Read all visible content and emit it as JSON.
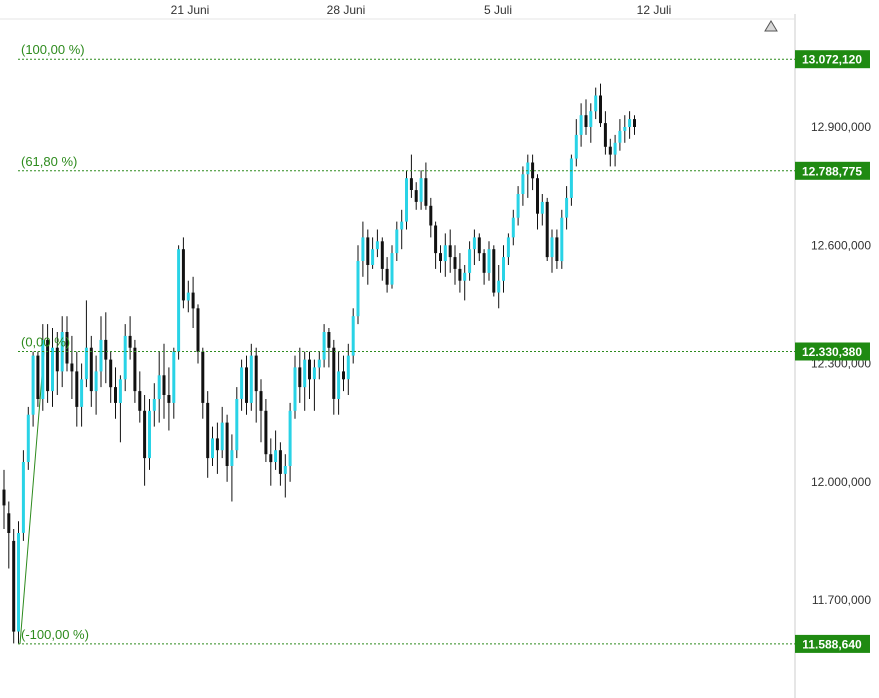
{
  "chart_data": {
    "type": "candlestick",
    "x_tick_labels": [
      "21 Juni",
      "28 Juni",
      "5 Juli",
      "12 Juli"
    ],
    "y_tick_labels": [
      "12.900,000",
      "12.600,000",
      "12.300,000",
      "12.000,000",
      "11.700,000"
    ],
    "y_ticks": [
      12900,
      12600,
      12300,
      12000,
      11700
    ],
    "ylim": [
      11450,
      13180
    ],
    "colors": {
      "up": "#29d3e6",
      "down": "#111111",
      "fib": "#2e8b1e",
      "badge_bg": "#1f8a12",
      "axis": "#cccccc"
    },
    "fibonacci_levels": [
      {
        "label": "(100,00 %)",
        "value": 13072.12,
        "badge": "13.072,120"
      },
      {
        "label": "(61,80 %)",
        "value": 12788.775,
        "badge": "12.788,775"
      },
      {
        "label": "(0,00 %)",
        "value": 12330.38,
        "badge": "12.330,380"
      },
      {
        "label": "(-100,00 %)",
        "value": 11588.64,
        "badge": "11.588,640"
      }
    ],
    "up_icon": "up-arrow-icon",
    "candles": [
      [
        11980,
        12030,
        11880,
        11940
      ],
      [
        11920,
        11950,
        11780,
        11870
      ],
      [
        11850,
        11880,
        11590,
        11620
      ],
      [
        11620,
        11900,
        11590,
        11870
      ],
      [
        11870,
        12080,
        11850,
        12050
      ],
      [
        12050,
        12190,
        12030,
        12170
      ],
      [
        12170,
        12330,
        12140,
        12320
      ],
      [
        12320,
        12330,
        12190,
        12210
      ],
      [
        12210,
        12400,
        12180,
        12360
      ],
      [
        12360,
        12400,
        12200,
        12230
      ],
      [
        12230,
        12390,
        12190,
        12340
      ],
      [
        12340,
        12380,
        12220,
        12280
      ],
      [
        12280,
        12420,
        12240,
        12380
      ],
      [
        12380,
        12420,
        12280,
        12300
      ],
      [
        12300,
        12370,
        12210,
        12280
      ],
      [
        12280,
        12330,
        12140,
        12190
      ],
      [
        12190,
        12300,
        12140,
        12260
      ],
      [
        12260,
        12460,
        12240,
        12340
      ],
      [
        12340,
        12370,
        12190,
        12230
      ],
      [
        12230,
        12320,
        12170,
        12280
      ],
      [
        12280,
        12420,
        12240,
        12360
      ],
      [
        12360,
        12430,
        12250,
        12310
      ],
      [
        12310,
        12330,
        12200,
        12240
      ],
      [
        12240,
        12290,
        12160,
        12200
      ],
      [
        12200,
        12270,
        12100,
        12260
      ],
      [
        12260,
        12400,
        12230,
        12370
      ],
      [
        12370,
        12420,
        12310,
        12340
      ],
      [
        12340,
        12360,
        12200,
        12230
      ],
      [
        12230,
        12280,
        12150,
        12180
      ],
      [
        12180,
        12220,
        11990,
        12060
      ],
      [
        12060,
        12210,
        12030,
        12180
      ],
      [
        12180,
        12250,
        12140,
        12210
      ],
      [
        12210,
        12330,
        12150,
        12270
      ],
      [
        12270,
        12350,
        12160,
        12220
      ],
      [
        12220,
        12290,
        12130,
        12200
      ],
      [
        12200,
        12340,
        12160,
        12330
      ],
      [
        12330,
        12600,
        12310,
        12590
      ],
      [
        12590,
        12620,
        12440,
        12460
      ],
      [
        12460,
        12510,
        12430,
        12480
      ],
      [
        12480,
        12520,
        12390,
        12440
      ],
      [
        12440,
        12450,
        12300,
        12330
      ],
      [
        12330,
        12340,
        12160,
        12200
      ],
      [
        12200,
        12230,
        12010,
        12060
      ],
      [
        12060,
        12140,
        12040,
        12110
      ],
      [
        12110,
        12150,
        12020,
        12080
      ],
      [
        12080,
        12190,
        12060,
        12150
      ],
      [
        12150,
        12170,
        12000,
        12040
      ],
      [
        12040,
        12120,
        11950,
        12080
      ],
      [
        12080,
        12240,
        12060,
        12210
      ],
      [
        12210,
        12310,
        12180,
        12290
      ],
      [
        12290,
        12320,
        12170,
        12200
      ],
      [
        12200,
        12350,
        12180,
        12320
      ],
      [
        12320,
        12340,
        12150,
        12230
      ],
      [
        12230,
        12260,
        12100,
        12180
      ],
      [
        12180,
        12210,
        12050,
        12070
      ],
      [
        12070,
        12110,
        11990,
        12050
      ],
      [
        12050,
        12130,
        12030,
        12080
      ],
      [
        12080,
        12100,
        11990,
        12020
      ],
      [
        12020,
        12070,
        11960,
        12040
      ],
      [
        12040,
        12200,
        12000,
        12180
      ],
      [
        12180,
        12320,
        12160,
        12290
      ],
      [
        12290,
        12340,
        12200,
        12240
      ],
      [
        12240,
        12330,
        12180,
        12310
      ],
      [
        12310,
        12330,
        12210,
        12260
      ],
      [
        12260,
        12310,
        12180,
        12290
      ],
      [
        12290,
        12330,
        12260,
        12310
      ],
      [
        12310,
        12400,
        12290,
        12380
      ],
      [
        12380,
        12390,
        12290,
        12340
      ],
      [
        12340,
        12360,
        12170,
        12210
      ],
      [
        12210,
        12330,
        12170,
        12280
      ],
      [
        12280,
        12320,
        12230,
        12260
      ],
      [
        12260,
        12350,
        12220,
        12320
      ],
      [
        12320,
        12440,
        12300,
        12420
      ],
      [
        12420,
        12600,
        12400,
        12560
      ],
      [
        12560,
        12660,
        12520,
        12620
      ],
      [
        12620,
        12640,
        12500,
        12550
      ],
      [
        12550,
        12620,
        12540,
        12590
      ],
      [
        12590,
        12640,
        12570,
        12610
      ],
      [
        12610,
        12620,
        12510,
        12540
      ],
      [
        12540,
        12570,
        12480,
        12500
      ],
      [
        12500,
        12600,
        12490,
        12580
      ],
      [
        12580,
        12660,
        12560,
        12640
      ],
      [
        12640,
        12690,
        12590,
        12660
      ],
      [
        12660,
        12790,
        12640,
        12770
      ],
      [
        12770,
        12830,
        12720,
        12740
      ],
      [
        12740,
        12760,
        12690,
        12710
      ],
      [
        12710,
        12790,
        12690,
        12770
      ],
      [
        12770,
        12810,
        12690,
        12700
      ],
      [
        12700,
        12720,
        12620,
        12650
      ],
      [
        12650,
        12660,
        12540,
        12580
      ],
      [
        12580,
        12600,
        12530,
        12560
      ],
      [
        12560,
        12630,
        12520,
        12600
      ],
      [
        12600,
        12640,
        12530,
        12570
      ],
      [
        12570,
        12600,
        12500,
        12540
      ],
      [
        12540,
        12580,
        12480,
        12510
      ],
      [
        12510,
        12550,
        12460,
        12530
      ],
      [
        12530,
        12610,
        12510,
        12590
      ],
      [
        12590,
        12640,
        12550,
        12620
      ],
      [
        12620,
        12630,
        12560,
        12580
      ],
      [
        12580,
        12590,
        12500,
        12530
      ],
      [
        12530,
        12610,
        12510,
        12590
      ],
      [
        12590,
        12600,
        12470,
        12480
      ],
      [
        12480,
        12550,
        12440,
        12510
      ],
      [
        12510,
        12600,
        12480,
        12570
      ],
      [
        12570,
        12630,
        12550,
        12620
      ],
      [
        12620,
        12690,
        12600,
        12670
      ],
      [
        12670,
        12750,
        12650,
        12730
      ],
      [
        12730,
        12800,
        12700,
        12780
      ],
      [
        12780,
        12830,
        12720,
        12810
      ],
      [
        12810,
        12830,
        12740,
        12770
      ],
      [
        12770,
        12780,
        12640,
        12680
      ],
      [
        12680,
        12730,
        12650,
        12710
      ],
      [
        12710,
        12720,
        12560,
        12570
      ],
      [
        12570,
        12640,
        12530,
        12620
      ],
      [
        12620,
        12640,
        12540,
        12560
      ],
      [
        12560,
        12690,
        12540,
        12670
      ],
      [
        12670,
        12750,
        12640,
        12720
      ],
      [
        12720,
        12830,
        12700,
        12820
      ],
      [
        12820,
        12920,
        12800,
        12880
      ],
      [
        12880,
        12960,
        12850,
        12930
      ],
      [
        12930,
        12970,
        12880,
        12900
      ],
      [
        12900,
        12960,
        12860,
        12940
      ],
      [
        12940,
        13000,
        12920,
        12980
      ],
      [
        12980,
        13010,
        12900,
        12910
      ],
      [
        12910,
        12940,
        12830,
        12850
      ],
      [
        12850,
        12870,
        12800,
        12830
      ],
      [
        12830,
        12880,
        12800,
        12860
      ],
      [
        12860,
        12920,
        12840,
        12890
      ],
      [
        12890,
        12930,
        12860,
        12900
      ],
      [
        12900,
        12940,
        12870,
        12920
      ],
      [
        12920,
        12930,
        12880,
        12900
      ]
    ]
  }
}
